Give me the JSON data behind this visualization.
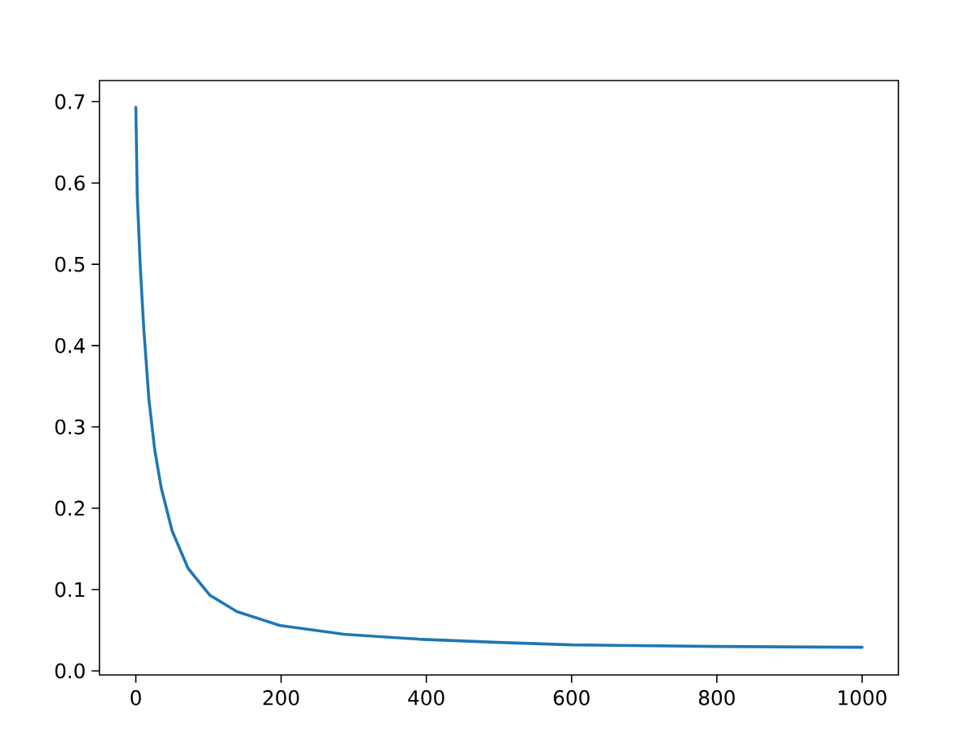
{
  "chart_data": {
    "type": "line",
    "color": "#1f77b4",
    "x": [
      0,
      2,
      6,
      11,
      18,
      26,
      35,
      50,
      72,
      102,
      139,
      198,
      287,
      390,
      500,
      600,
      800,
      1000
    ],
    "values": [
      0.693,
      0.584,
      0.499,
      0.42,
      0.334,
      0.272,
      0.225,
      0.172,
      0.126,
      0.093,
      0.073,
      0.056,
      0.045,
      0.039,
      0.035,
      0.032,
      0.03,
      0.029
    ],
    "xlim": [
      -50,
      1050
    ],
    "ylim": [
      -0.005,
      0.726
    ],
    "xticks": [
      0,
      200,
      400,
      600,
      800,
      1000
    ],
    "yticks": [
      {
        "value": 0,
        "label": "0.0"
      },
      0.1,
      0.2,
      0.3,
      0.4,
      0.5,
      0.6,
      0.7
    ]
  }
}
